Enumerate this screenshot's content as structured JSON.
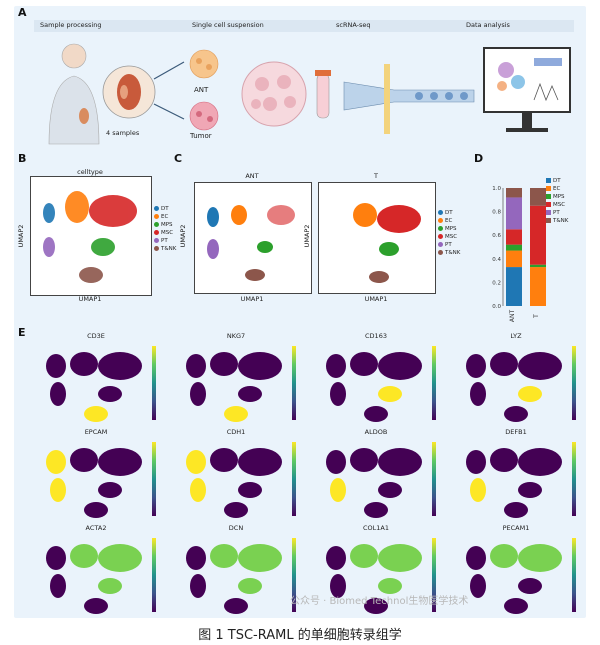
{
  "panel_labels": [
    "A",
    "B",
    "C",
    "D",
    "E"
  ],
  "panelA": {
    "steps": [
      "Sample processing",
      "Single cell suspension",
      "scRNA-seq",
      "Data analysis"
    ],
    "sample_count": "4 samples",
    "tissues": [
      "ANT",
      "Tumor"
    ]
  },
  "panelB": {
    "title": "celltype",
    "xlabel": "UMAP1",
    "ylabel": "UMAP2"
  },
  "panelC": {
    "titles": [
      "ANT",
      "T"
    ],
    "xlabel": "UMAP1",
    "ylabel": "UMAP2"
  },
  "legend": [
    {
      "name": "DT",
      "color": "#1f77b4"
    },
    {
      "name": "EC",
      "color": "#ff7f0e"
    },
    {
      "name": "MPS",
      "color": "#2ca02c"
    },
    {
      "name": "MSC",
      "color": "#d62728"
    },
    {
      "name": "PT",
      "color": "#9467bd"
    },
    {
      "name": "T&NK",
      "color": "#8c564b"
    }
  ],
  "chart_data": {
    "type": "bar",
    "stacked": true,
    "categories": [
      "ANT",
      "T"
    ],
    "series": [
      {
        "name": "DT",
        "values": [
          0.33,
          0.0
        ]
      },
      {
        "name": "EC",
        "values": [
          0.14,
          0.33
        ]
      },
      {
        "name": "MPS",
        "values": [
          0.05,
          0.02
        ]
      },
      {
        "name": "MSC",
        "values": [
          0.13,
          0.5
        ]
      },
      {
        "name": "PT",
        "values": [
          0.27,
          0.0
        ]
      },
      {
        "name": "T&NK",
        "values": [
          0.08,
          0.15
        ]
      }
    ],
    "yticks": [
      "0.0",
      "0.2",
      "0.4",
      "0.6",
      "0.8",
      "1.0"
    ],
    "ylim": [
      0,
      1.0
    ]
  },
  "panelE": {
    "genes": [
      "CD3E",
      "NKG7",
      "CD163",
      "LYZ",
      "EPCAM",
      "CDH1",
      "ALDOB",
      "DEFB1",
      "ACTA2",
      "DCN",
      "COL1A1",
      "PECAM1"
    ]
  },
  "caption": "图 1 TSC-RAML 的单细胞转录组学",
  "watermark": "公众号 · Biomed Technol生物医学技术"
}
